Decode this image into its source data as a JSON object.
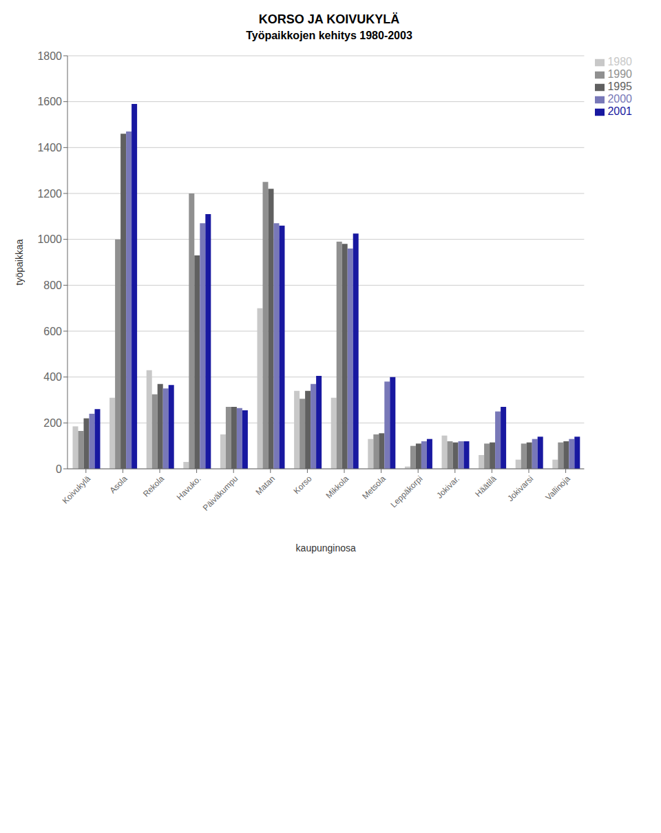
{
  "chart_data": {
    "type": "bar",
    "title": "KORSO JA KOIVUKYLÄ",
    "subtitle": "Työpaikkojen kehitys 1980-2003",
    "x_label": "kaupunginosa",
    "y_label": "työpaikkaa",
    "categories": [
      "Koivukylä",
      "Asola",
      "Rekola",
      "Havuko.",
      "Päiväkumpu",
      "Matan",
      "Korso",
      "Mikkola",
      "Metsola",
      "Leppäkorpi",
      "Jokivar.",
      "Häätilä",
      "Jokivarsi",
      "Vallinoja"
    ],
    "series": [
      {
        "name": "1980",
        "color": "#c8c8c8",
        "values": [
          185,
          310,
          430,
          30,
          150,
          700,
          340,
          310,
          130,
          10,
          145,
          60,
          40,
          40
        ]
      },
      {
        "name": "1990",
        "color": "#909090",
        "values": [
          165,
          1000,
          325,
          1200,
          270,
          1250,
          305,
          990,
          150,
          100,
          120,
          110,
          110,
          115
        ]
      },
      {
        "name": "1995",
        "color": "#606060",
        "values": [
          220,
          1460,
          370,
          930,
          270,
          1220,
          340,
          980,
          155,
          110,
          115,
          115,
          115,
          120
        ]
      },
      {
        "name": "2000",
        "color": "#7878b8",
        "values": [
          240,
          1470,
          350,
          1070,
          265,
          1070,
          370,
          960,
          380,
          120,
          120,
          250,
          130,
          130
        ]
      },
      {
        "name": "2001",
        "color": "#1818a0",
        "values": [
          260,
          1590,
          365,
          1110,
          255,
          1060,
          405,
          1025,
          400,
          130,
          120,
          270,
          140,
          140
        ]
      }
    ],
    "ylim": [
      0,
      1800
    ],
    "yticks": [
      0,
      200,
      400,
      600,
      800,
      1000,
      1200,
      1400,
      1600,
      1800
    ],
    "grid": true,
    "legend": "right"
  }
}
